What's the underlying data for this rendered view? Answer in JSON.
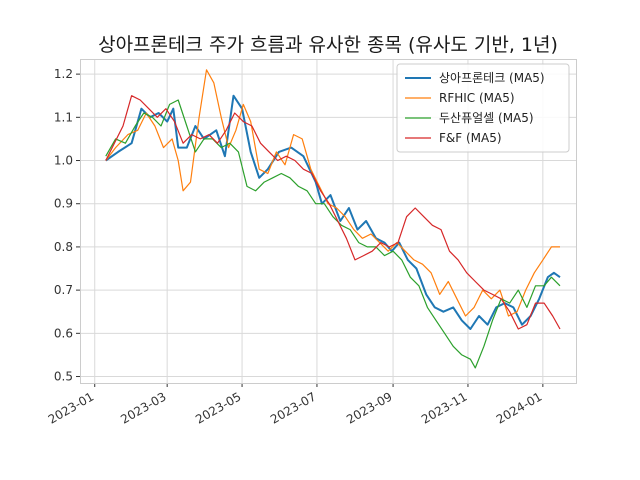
{
  "chart_data": {
    "type": "line",
    "title": "상아프론테크 주가 흐름과 유사한 종목 (유사도 기반, 1년)",
    "xlabel": "",
    "ylabel": "",
    "x_ticks": [
      "2023-01",
      "2023-03",
      "2023-05",
      "2023-07",
      "2023-09",
      "2023-11",
      "2024-01"
    ],
    "x_tick_dates": [
      "2023-01-01",
      "2023-03-01",
      "2023-05-01",
      "2023-07-01",
      "2023-09-01",
      "2023-11-01",
      "2024-01-01"
    ],
    "x_range": [
      "2022-12-20",
      "2024-01-28"
    ],
    "y_ticks": [
      "0.5",
      "0.6",
      "0.7",
      "0.8",
      "0.9",
      "1.0",
      "1.1",
      "1.2"
    ],
    "ylim": [
      0.485,
      1.235
    ],
    "grid": true,
    "legend_position": "top-right",
    "series": [
      {
        "name": "상아프론테크 (MA5)",
        "color": "#1f77b4",
        "points": [
          [
            "2023-01-10",
            1.0
          ],
          [
            "2023-01-20",
            1.02
          ],
          [
            "2023-01-31",
            1.04
          ],
          [
            "2023-02-08",
            1.12
          ],
          [
            "2023-02-15",
            1.1
          ],
          [
            "2023-02-22",
            1.11
          ],
          [
            "2023-03-01",
            1.09
          ],
          [
            "2023-03-06",
            1.12
          ],
          [
            "2023-03-10",
            1.03
          ],
          [
            "2023-03-17",
            1.03
          ],
          [
            "2023-03-24",
            1.08
          ],
          [
            "2023-03-31",
            1.05
          ],
          [
            "2023-04-10",
            1.07
          ],
          [
            "2023-04-17",
            1.01
          ],
          [
            "2023-04-24",
            1.15
          ],
          [
            "2023-05-01",
            1.12
          ],
          [
            "2023-05-08",
            1.02
          ],
          [
            "2023-05-15",
            0.96
          ],
          [
            "2023-05-22",
            0.98
          ],
          [
            "2023-05-31",
            1.02
          ],
          [
            "2023-06-10",
            1.03
          ],
          [
            "2023-06-20",
            1.01
          ],
          [
            "2023-06-30",
            0.95
          ],
          [
            "2023-07-05",
            0.9
          ],
          [
            "2023-07-12",
            0.92
          ],
          [
            "2023-07-20",
            0.86
          ],
          [
            "2023-07-27",
            0.89
          ],
          [
            "2023-08-03",
            0.84
          ],
          [
            "2023-08-10",
            0.86
          ],
          [
            "2023-08-18",
            0.82
          ],
          [
            "2023-08-25",
            0.81
          ],
          [
            "2023-08-31",
            0.79
          ],
          [
            "2023-09-06",
            0.81
          ],
          [
            "2023-09-13",
            0.77
          ],
          [
            "2023-09-20",
            0.75
          ],
          [
            "2023-09-28",
            0.69
          ],
          [
            "2023-10-05",
            0.66
          ],
          [
            "2023-10-12",
            0.65
          ],
          [
            "2023-10-20",
            0.66
          ],
          [
            "2023-10-27",
            0.63
          ],
          [
            "2023-11-03",
            0.61
          ],
          [
            "2023-11-10",
            0.64
          ],
          [
            "2023-11-17",
            0.62
          ],
          [
            "2023-11-24",
            0.66
          ],
          [
            "2023-12-01",
            0.67
          ],
          [
            "2023-12-08",
            0.66
          ],
          [
            "2023-12-15",
            0.62
          ],
          [
            "2023-12-22",
            0.64
          ],
          [
            "2023-12-29",
            0.68
          ],
          [
            "2024-01-05",
            0.73
          ],
          [
            "2024-01-10",
            0.74
          ],
          [
            "2024-01-15",
            0.73
          ]
        ]
      },
      {
        "name": "RFHIC (MA5)",
        "color": "#ff7f0e",
        "points": [
          [
            "2023-01-10",
            1.0
          ],
          [
            "2023-01-18",
            1.03
          ],
          [
            "2023-01-28",
            1.06
          ],
          [
            "2023-02-05",
            1.07
          ],
          [
            "2023-02-12",
            1.11
          ],
          [
            "2023-02-19",
            1.08
          ],
          [
            "2023-02-26",
            1.03
          ],
          [
            "2023-03-05",
            1.05
          ],
          [
            "2023-03-10",
            1.0
          ],
          [
            "2023-03-14",
            0.93
          ],
          [
            "2023-03-20",
            0.95
          ],
          [
            "2023-03-27",
            1.1
          ],
          [
            "2023-04-02",
            1.21
          ],
          [
            "2023-04-08",
            1.18
          ],
          [
            "2023-04-14",
            1.1
          ],
          [
            "2023-04-20",
            1.03
          ],
          [
            "2023-04-26",
            1.07
          ],
          [
            "2023-05-02",
            1.13
          ],
          [
            "2023-05-08",
            1.09
          ],
          [
            "2023-05-15",
            0.98
          ],
          [
            "2023-05-22",
            0.97
          ],
          [
            "2023-05-29",
            1.02
          ],
          [
            "2023-06-05",
            0.99
          ],
          [
            "2023-06-12",
            1.06
          ],
          [
            "2023-06-19",
            1.05
          ],
          [
            "2023-06-26",
            0.98
          ],
          [
            "2023-07-03",
            0.94
          ],
          [
            "2023-07-10",
            0.9
          ],
          [
            "2023-07-17",
            0.89
          ],
          [
            "2023-07-24",
            0.87
          ],
          [
            "2023-07-31",
            0.84
          ],
          [
            "2023-08-07",
            0.82
          ],
          [
            "2023-08-14",
            0.83
          ],
          [
            "2023-08-21",
            0.81
          ],
          [
            "2023-08-28",
            0.79
          ],
          [
            "2023-09-04",
            0.81
          ],
          [
            "2023-09-11",
            0.79
          ],
          [
            "2023-09-18",
            0.77
          ],
          [
            "2023-09-25",
            0.76
          ],
          [
            "2023-10-02",
            0.74
          ],
          [
            "2023-10-09",
            0.69
          ],
          [
            "2023-10-16",
            0.72
          ],
          [
            "2023-10-23",
            0.68
          ],
          [
            "2023-10-30",
            0.64
          ],
          [
            "2023-11-06",
            0.66
          ],
          [
            "2023-11-13",
            0.7
          ],
          [
            "2023-11-20",
            0.68
          ],
          [
            "2023-11-27",
            0.7
          ],
          [
            "2023-12-04",
            0.64
          ],
          [
            "2023-12-11",
            0.65
          ],
          [
            "2023-12-18",
            0.7
          ],
          [
            "2023-12-25",
            0.74
          ],
          [
            "2024-01-01",
            0.77
          ],
          [
            "2024-01-08",
            0.8
          ],
          [
            "2024-01-15",
            0.8
          ]
        ]
      },
      {
        "name": "두산퓨얼셀 (MA5)",
        "color": "#2ca02c",
        "points": [
          [
            "2023-01-10",
            1.01
          ],
          [
            "2023-01-18",
            1.05
          ],
          [
            "2023-01-26",
            1.04
          ],
          [
            "2023-02-03",
            1.08
          ],
          [
            "2023-02-10",
            1.11
          ],
          [
            "2023-02-17",
            1.1
          ],
          [
            "2023-02-24",
            1.08
          ],
          [
            "2023-03-03",
            1.13
          ],
          [
            "2023-03-10",
            1.14
          ],
          [
            "2023-03-17",
            1.08
          ],
          [
            "2023-03-24",
            1.02
          ],
          [
            "2023-03-31",
            1.05
          ],
          [
            "2023-04-07",
            1.05
          ],
          [
            "2023-04-14",
            1.03
          ],
          [
            "2023-04-21",
            1.04
          ],
          [
            "2023-04-28",
            1.02
          ],
          [
            "2023-05-05",
            0.94
          ],
          [
            "2023-05-12",
            0.93
          ],
          [
            "2023-05-19",
            0.95
          ],
          [
            "2023-05-26",
            0.96
          ],
          [
            "2023-06-02",
            0.97
          ],
          [
            "2023-06-09",
            0.96
          ],
          [
            "2023-06-16",
            0.94
          ],
          [
            "2023-06-23",
            0.93
          ],
          [
            "2023-06-30",
            0.9
          ],
          [
            "2023-07-07",
            0.9
          ],
          [
            "2023-07-14",
            0.87
          ],
          [
            "2023-07-21",
            0.85
          ],
          [
            "2023-07-28",
            0.84
          ],
          [
            "2023-08-04",
            0.81
          ],
          [
            "2023-08-11",
            0.8
          ],
          [
            "2023-08-18",
            0.8
          ],
          [
            "2023-08-25",
            0.78
          ],
          [
            "2023-09-01",
            0.79
          ],
          [
            "2023-09-08",
            0.77
          ],
          [
            "2023-09-15",
            0.73
          ],
          [
            "2023-09-22",
            0.71
          ],
          [
            "2023-09-29",
            0.66
          ],
          [
            "2023-10-06",
            0.63
          ],
          [
            "2023-10-13",
            0.6
          ],
          [
            "2023-10-20",
            0.57
          ],
          [
            "2023-10-27",
            0.55
          ],
          [
            "2023-11-03",
            0.54
          ],
          [
            "2023-11-07",
            0.52
          ],
          [
            "2023-11-14",
            0.57
          ],
          [
            "2023-11-21",
            0.63
          ],
          [
            "2023-11-28",
            0.68
          ],
          [
            "2023-12-05",
            0.67
          ],
          [
            "2023-12-12",
            0.7
          ],
          [
            "2023-12-19",
            0.66
          ],
          [
            "2023-12-26",
            0.71
          ],
          [
            "2024-01-02",
            0.71
          ],
          [
            "2024-01-08",
            0.73
          ],
          [
            "2024-01-15",
            0.71
          ]
        ]
      },
      {
        "name": "F&F (MA5)",
        "color": "#d62728",
        "points": [
          [
            "2023-01-10",
            1.0
          ],
          [
            "2023-01-17",
            1.04
          ],
          [
            "2023-01-24",
            1.08
          ],
          [
            "2023-01-31",
            1.15
          ],
          [
            "2023-02-07",
            1.14
          ],
          [
            "2023-02-14",
            1.12
          ],
          [
            "2023-02-21",
            1.1
          ],
          [
            "2023-02-28",
            1.12
          ],
          [
            "2023-03-07",
            1.09
          ],
          [
            "2023-03-14",
            1.04
          ],
          [
            "2023-03-21",
            1.06
          ],
          [
            "2023-03-28",
            1.05
          ],
          [
            "2023-04-04",
            1.06
          ],
          [
            "2023-04-11",
            1.04
          ],
          [
            "2023-04-18",
            1.07
          ],
          [
            "2023-04-25",
            1.11
          ],
          [
            "2023-05-02",
            1.09
          ],
          [
            "2023-05-09",
            1.08
          ],
          [
            "2023-05-16",
            1.04
          ],
          [
            "2023-05-23",
            1.02
          ],
          [
            "2023-05-30",
            1.0
          ],
          [
            "2023-06-06",
            1.01
          ],
          [
            "2023-06-13",
            1.0
          ],
          [
            "2023-06-20",
            0.98
          ],
          [
            "2023-06-27",
            0.97
          ],
          [
            "2023-07-04",
            0.93
          ],
          [
            "2023-07-11",
            0.9
          ],
          [
            "2023-07-18",
            0.86
          ],
          [
            "2023-07-25",
            0.82
          ],
          [
            "2023-08-01",
            0.77
          ],
          [
            "2023-08-08",
            0.78
          ],
          [
            "2023-08-15",
            0.79
          ],
          [
            "2023-08-22",
            0.81
          ],
          [
            "2023-08-29",
            0.8
          ],
          [
            "2023-09-05",
            0.81
          ],
          [
            "2023-09-12",
            0.87
          ],
          [
            "2023-09-19",
            0.89
          ],
          [
            "2023-09-26",
            0.87
          ],
          [
            "2023-10-03",
            0.85
          ],
          [
            "2023-10-10",
            0.84
          ],
          [
            "2023-10-17",
            0.79
          ],
          [
            "2023-10-24",
            0.77
          ],
          [
            "2023-10-31",
            0.74
          ],
          [
            "2023-11-07",
            0.72
          ],
          [
            "2023-11-14",
            0.7
          ],
          [
            "2023-11-21",
            0.69
          ],
          [
            "2023-11-28",
            0.68
          ],
          [
            "2023-12-05",
            0.65
          ],
          [
            "2023-12-12",
            0.61
          ],
          [
            "2023-12-19",
            0.62
          ],
          [
            "2023-12-26",
            0.67
          ],
          [
            "2024-01-02",
            0.67
          ],
          [
            "2024-01-09",
            0.64
          ],
          [
            "2024-01-15",
            0.61
          ]
        ]
      }
    ]
  }
}
